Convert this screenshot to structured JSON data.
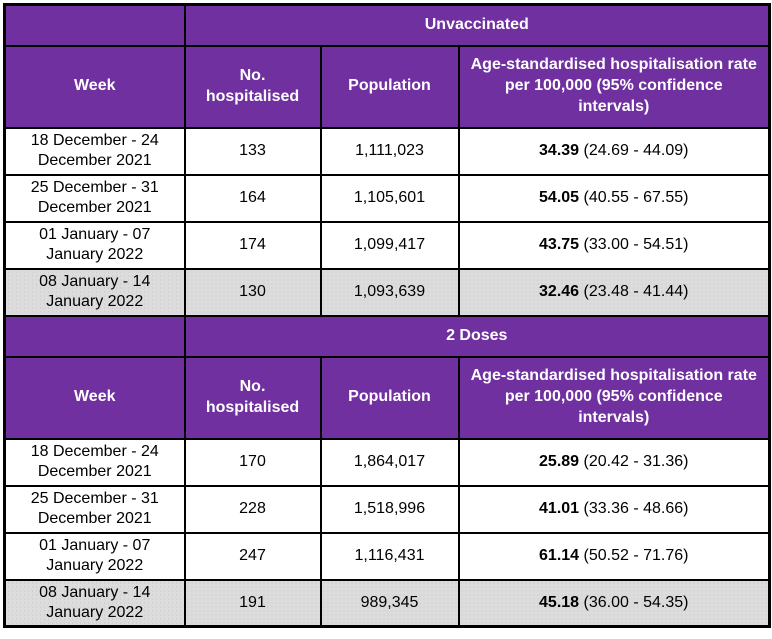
{
  "columns": {
    "week": "Week",
    "hospitalised": "No. hospitalised",
    "population": "Population",
    "rate": "Age-standardised hospitalisation rate per 100,000 (95% confidence intervals)"
  },
  "sections": [
    {
      "title": "Unvaccinated",
      "rows": [
        {
          "week": "18 December - 24 December 2021",
          "hospitalised": "133",
          "population": "1,111,023",
          "rate": "34.39",
          "ci": "(24.69 - 44.09)"
        },
        {
          "week": "25 December - 31 December 2021",
          "hospitalised": "164",
          "population": "1,105,601",
          "rate": "54.05",
          "ci": "(40.55 - 67.55)"
        },
        {
          "week": "01 January - 07 January 2022",
          "hospitalised": "174",
          "population": "1,099,417",
          "rate": "43.75",
          "ci": "(33.00 - 54.51)"
        },
        {
          "week": "08 January - 14 January 2022",
          "hospitalised": "130",
          "population": "1,093,639",
          "rate": "32.46",
          "ci": "(23.48 - 41.44)"
        }
      ]
    },
    {
      "title": "2 Doses",
      "rows": [
        {
          "week": "18 December - 24 December 2021",
          "hospitalised": "170",
          "population": "1,864,017",
          "rate": "25.89",
          "ci": "(20.42 - 31.36)"
        },
        {
          "week": "25 December - 31 December 2021",
          "hospitalised": "228",
          "population": "1,518,996",
          "rate": "41.01",
          "ci": "(33.36 - 48.66)"
        },
        {
          "week": "01 January - 07 January 2022",
          "hospitalised": "247",
          "population": "1,116,431",
          "rate": "61.14",
          "ci": "(50.52 - 71.76)"
        },
        {
          "week": "08 January - 14 January 2022",
          "hospitalised": "191",
          "population": "989,345",
          "rate": "45.18",
          "ci": "(36.00 - 54.35)"
        }
      ]
    }
  ],
  "colors": {
    "header_purple": "#7030A0",
    "header_text": "#FFFFFF",
    "shaded_row_grey": "#DCDCDC",
    "border": "#000000",
    "body_text": "#000000"
  }
}
